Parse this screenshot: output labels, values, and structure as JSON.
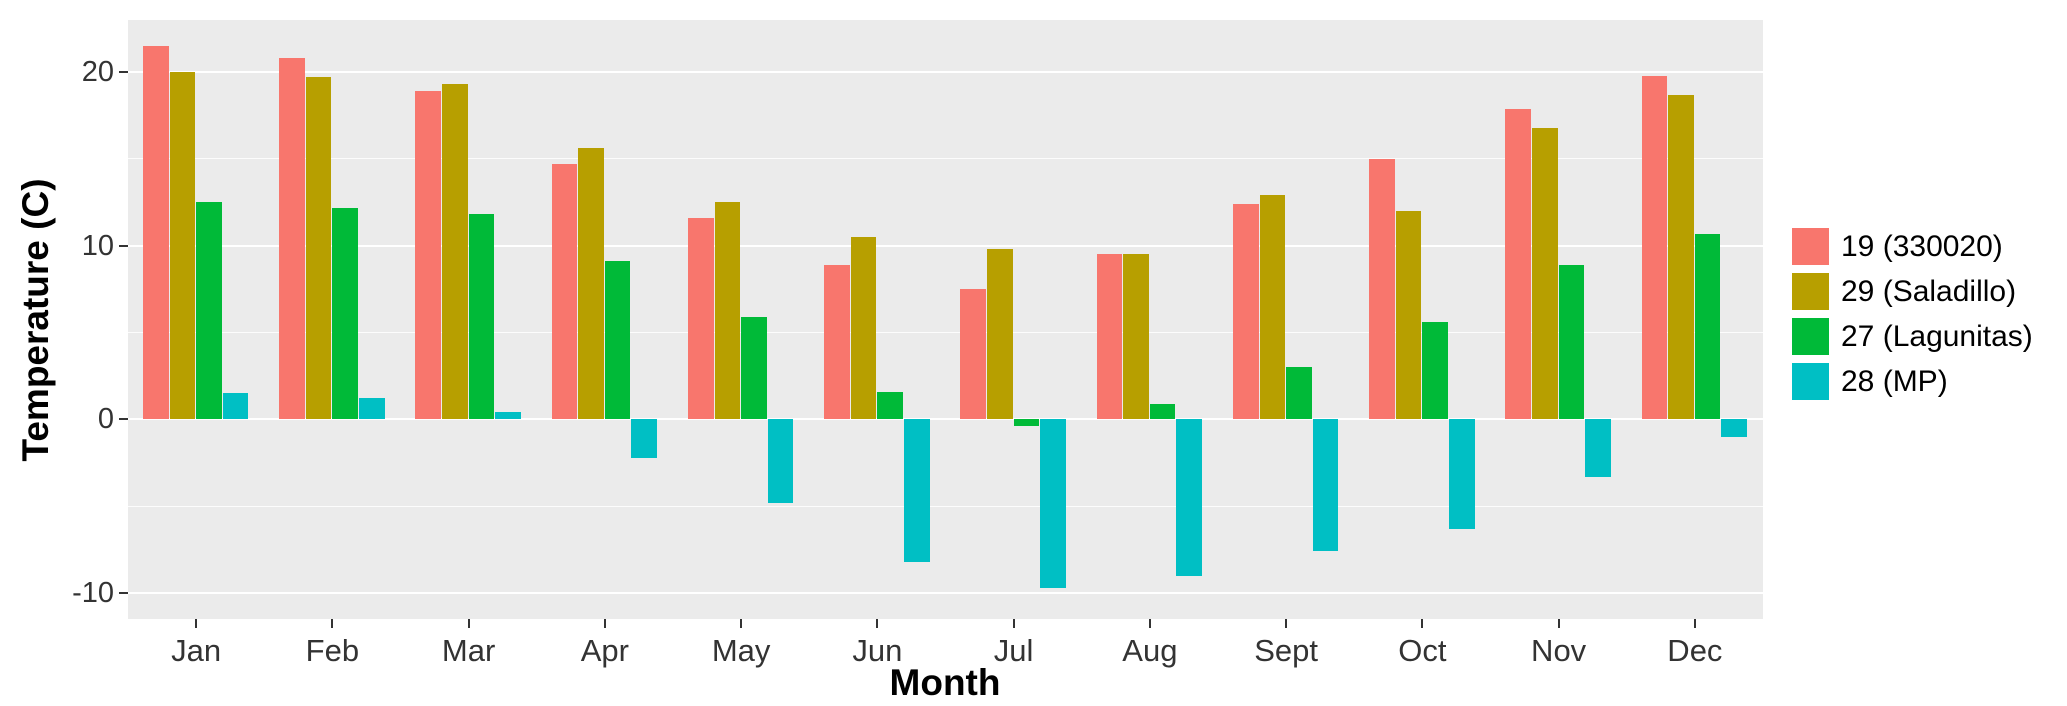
{
  "chart_data": {
    "type": "bar",
    "title": "",
    "xlabel": "Month",
    "ylabel": "Temperature (C)",
    "categories": [
      "Jan",
      "Feb",
      "Mar",
      "Apr",
      "May",
      "Jun",
      "Jul",
      "Aug",
      "Sept",
      "Oct",
      "Nov",
      "Dec"
    ],
    "series": [
      {
        "name": "19 (330020)",
        "color": "#F8766D",
        "values": [
          21.5,
          20.8,
          18.9,
          14.7,
          11.6,
          8.9,
          7.5,
          9.5,
          12.4,
          15.0,
          17.9,
          19.8
        ]
      },
      {
        "name": "29 (Saladillo)",
        "color": "#B79F00",
        "values": [
          20.0,
          19.7,
          19.3,
          15.6,
          12.5,
          10.5,
          9.8,
          9.5,
          12.9,
          12.0,
          16.8,
          18.7
        ]
      },
      {
        "name": "27 (Lagunitas)",
        "color": "#00BA38",
        "values": [
          12.5,
          12.2,
          11.8,
          9.1,
          5.9,
          1.6,
          -0.4,
          0.9,
          3.0,
          5.6,
          8.9,
          10.7
        ]
      },
      {
        "name": "28 (MP)",
        "color": "#00BFC4",
        "values": [
          1.5,
          1.2,
          0.4,
          -2.2,
          -4.8,
          -8.2,
          -9.7,
          -9.0,
          -7.6,
          -6.3,
          -3.3,
          -1.0
        ]
      }
    ],
    "y_ticks": [
      20,
      10,
      0,
      -10
    ],
    "y_minor_ticks": [
      15,
      5,
      -5
    ],
    "ylim": [
      -11.5,
      23
    ],
    "grid": "major-minor-horizontal",
    "legend_position": "right",
    "panel_bg": "#EBEBEB",
    "grid_color": "#FFFFFF"
  }
}
